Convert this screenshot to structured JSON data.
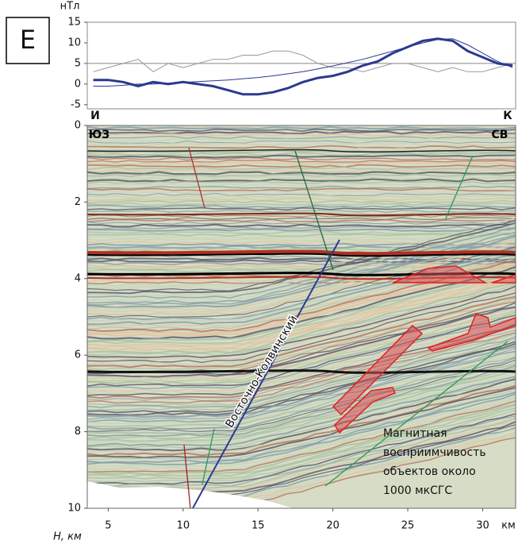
{
  "chart_data": [
    {
      "type": "line",
      "panel_label": "Е",
      "ylabel": "нТл",
      "x": [
        4,
        5,
        6,
        7,
        8,
        9,
        10,
        11,
        12,
        13,
        14,
        15,
        16,
        17,
        18,
        19,
        20,
        21,
        22,
        23,
        24,
        25,
        26,
        27,
        28,
        29,
        30,
        31,
        32
      ],
      "series": [
        {
          "color": "#999999",
          "width": 1,
          "values": [
            3,
            4,
            5,
            6,
            3,
            5,
            4,
            5,
            6,
            6,
            7,
            7,
            8,
            8,
            7,
            5,
            4,
            4,
            3,
            4,
            5,
            5,
            4,
            3,
            4,
            3,
            3,
            4,
            5
          ]
        },
        {
          "color": "#2b3990",
          "width": 1,
          "values": [
            -0.5,
            -0.5,
            -0.3,
            0,
            0,
            0.2,
            0.4,
            0.6,
            0.8,
            1,
            1.3,
            1.6,
            2,
            2.5,
            3,
            3.7,
            4.4,
            5.2,
            6,
            7,
            8,
            9,
            10,
            10.8,
            11,
            9.5,
            7.5,
            5.5,
            4
          ]
        },
        {
          "color": "#2b3990",
          "width": 3,
          "values": [
            1,
            1,
            0.5,
            -0.5,
            0.5,
            0,
            0.5,
            0,
            -0.5,
            -1.5,
            -2.5,
            -2.5,
            -2,
            -1,
            0.5,
            1.5,
            2,
            3,
            4.5,
            5.5,
            7.5,
            9,
            10.5,
            11,
            10.5,
            8,
            6.5,
            5,
            4.5
          ]
        }
      ],
      "hline": 5,
      "xlim": [
        3.6,
        32.2
      ],
      "ylim": [
        -6,
        15
      ],
      "yticks": [
        -5,
        0,
        5,
        10,
        15
      ]
    },
    {
      "type": "section",
      "ylabel": "H, км",
      "xlabel": "км",
      "left_label": "И",
      "right_label": "К",
      "left_dir": "ЮЗ",
      "right_dir": "СВ",
      "fault_label": "Восточно-Колвинский",
      "annotation": [
        "Магнитная",
        "восприимчивость",
        "объектов около",
        "1000 мкСГС"
      ],
      "xlim": [
        3.6,
        32.2
      ],
      "ylim": [
        0,
        10
      ],
      "xticks": [
        5,
        10,
        15,
        20,
        25,
        30
      ],
      "yticks": [
        0,
        2,
        4,
        6,
        8,
        10
      ]
    }
  ]
}
